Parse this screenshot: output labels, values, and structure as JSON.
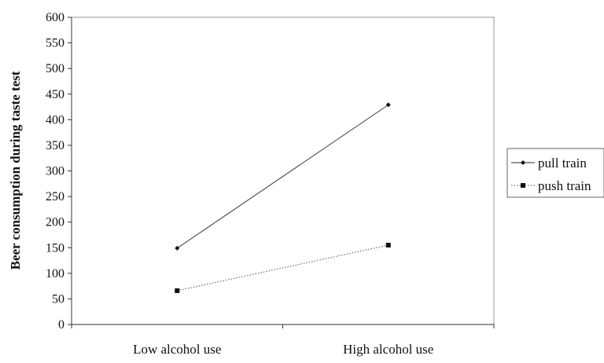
{
  "chart_data": {
    "type": "line",
    "title": "",
    "xlabel": "",
    "ylabel": "Beer consumption during taste test",
    "categories": [
      "Low alcohol use",
      "High alcohol use"
    ],
    "ylim": [
      0,
      600
    ],
    "yticks": [
      0,
      50,
      100,
      150,
      200,
      250,
      300,
      350,
      400,
      450,
      500,
      550,
      600
    ],
    "grid": false,
    "legend_position": "right",
    "series": [
      {
        "name": "pull train",
        "values": [
          149,
          429
        ],
        "line_style": "solid",
        "marker": "diamond",
        "color": "#555555"
      },
      {
        "name": "push train",
        "values": [
          66,
          155
        ],
        "line_style": "dotted",
        "marker": "square",
        "color": "#555555"
      }
    ]
  }
}
